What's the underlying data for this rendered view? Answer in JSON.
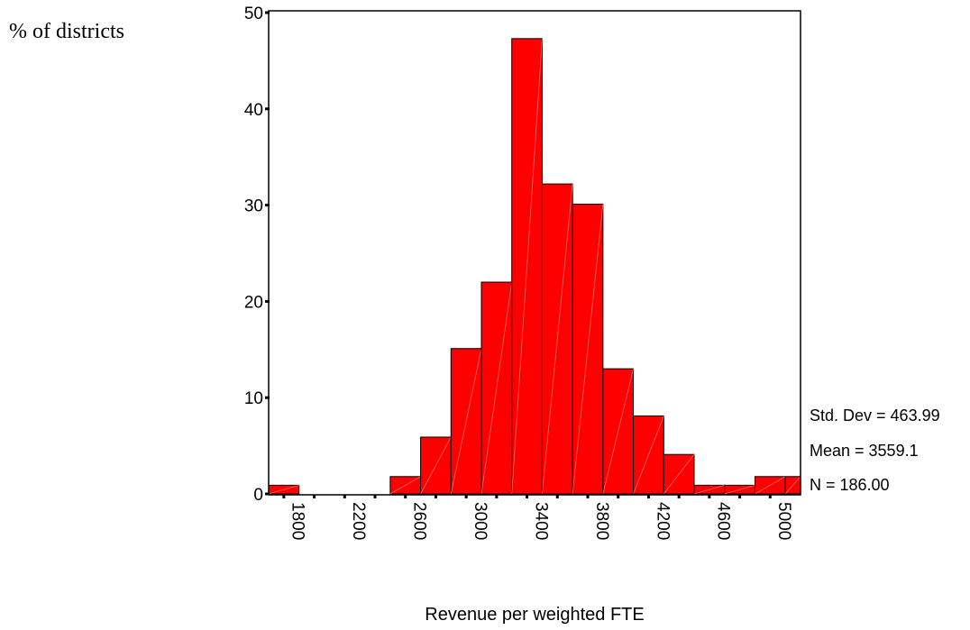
{
  "chart_data": {
    "type": "bar",
    "title": "",
    "ylabel": "% of districts",
    "xlabel": "Revenue per weighted FTE",
    "ylim": [
      0,
      50
    ],
    "y_ticks": [
      0,
      10,
      20,
      30,
      40,
      50
    ],
    "bin_width": 200,
    "xlim": [
      1600,
      5100
    ],
    "x_tick_labels": [
      1800,
      2200,
      2600,
      3000,
      3400,
      3800,
      4200,
      4600,
      5000
    ],
    "bin_centers": [
      1700,
      1900,
      2100,
      2300,
      2500,
      2700,
      2900,
      3100,
      3300,
      3500,
      3700,
      3900,
      4100,
      4300,
      4500,
      4700,
      4900,
      5100
    ],
    "values": [
      0.9,
      0,
      0,
      0,
      1.8,
      5.9,
      15.1,
      22.0,
      47.3,
      32.2,
      30.1,
      13.0,
      8.1,
      4.1,
      0.9,
      0.9,
      1.8,
      1.8
    ],
    "bar_color": "#ff0000",
    "grid": false,
    "stats": {
      "std_dev": "Std. Dev = 463.99",
      "mean": "Mean = 3559.1",
      "n": "N = 186.00"
    }
  }
}
